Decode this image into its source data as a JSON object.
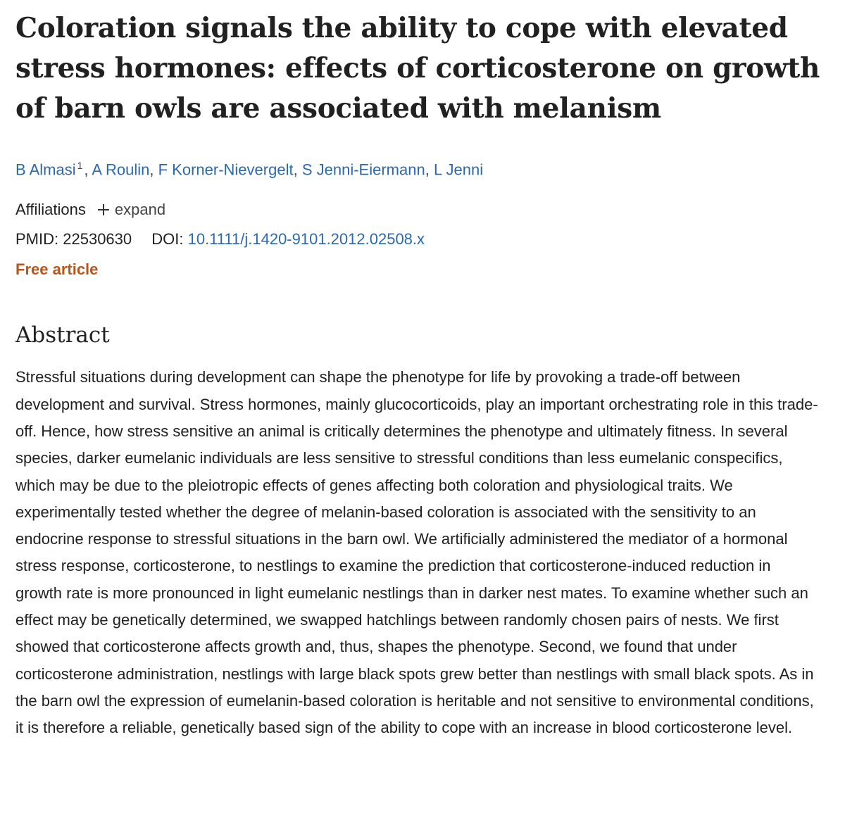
{
  "header": {
    "title": "Coloration signals the ability to cope with elevated stress hormones: effects of corticosterone on growth of barn owls are associated with melanism"
  },
  "authors": {
    "names": [
      "B Almasi",
      "A Roulin",
      "F Korner-Nievergelt",
      "S Jenni-Eiermann",
      "L Jenni"
    ],
    "first_affiliation_ref": "1",
    "separator": ","
  },
  "meta": {
    "affiliations_label": "Affiliations",
    "expand_label": "expand",
    "pmid_label": "PMID:",
    "pmid": "22530630",
    "doi_label": "DOI:",
    "doi": "10.1111/j.1420-9101.2012.02508.x",
    "free_label": "Free article"
  },
  "abstract": {
    "heading": "Abstract",
    "text": "Stressful situations during development can shape the phenotype for life by provoking a trade-off between development and survival. Stress hormones, mainly glucocorticoids, play an important orchestrating role in this trade-off. Hence, how stress sensitive an animal is critically determines the phenotype and ultimately fitness. In several species, darker eumelanic individuals are less sensitive to stressful conditions than less eumelanic conspecifics, which may be due to the pleiotropic effects of genes affecting both coloration and physiological traits. We experimentally tested whether the degree of melanin-based coloration is associated with the sensitivity to an endocrine response to stressful situations in the barn owl. We artificially administered the mediator of a hormonal stress response, corticosterone, to nestlings to examine the prediction that corticosterone-induced reduction in growth rate is more pronounced in light eumelanic nestlings than in darker nest mates. To examine whether such an effect may be genetically determined, we swapped hatchlings between randomly chosen pairs of nests. We first showed that corticosterone affects growth and, thus, shapes the phenotype. Second, we found that under corticosterone administration, nestlings with large black spots grew better than nestlings with small black spots. As in the barn owl the expression of eumelanin-based coloration is heritable and not sensitive to environmental conditions, it is therefore a reliable, genetically based sign of the ability to cope with an increase in blood corticosterone level."
  }
}
